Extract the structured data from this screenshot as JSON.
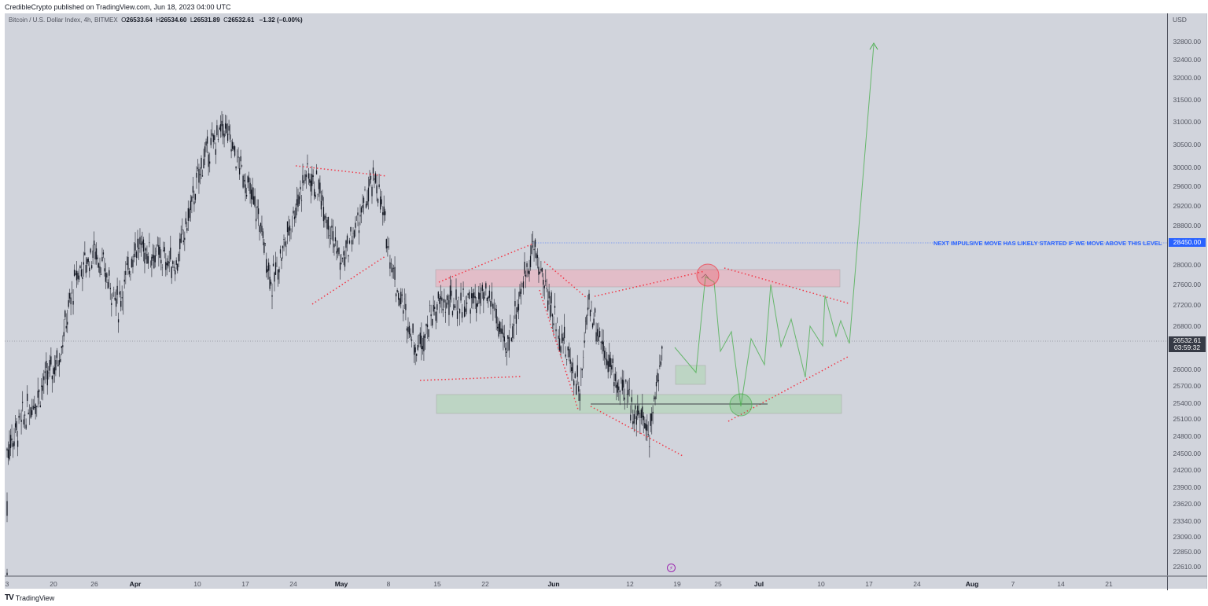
{
  "publish_bar": {
    "text": "CredibleCrypto published on TradingView.com, Jun 18, 2023 04:00 UTC"
  },
  "legend": {
    "symbol": "Bitcoin / U.S. Dollar Index, 4h, BITMEX",
    "open_label": "O",
    "open": "26533.64",
    "high_label": "H",
    "high": "26534.60",
    "low_label": "L",
    "low": "26531.89",
    "close_label": "C",
    "close": "26532.61",
    "change": "−1.32 (−0.00%)"
  },
  "price_axis": {
    "unit": "USD",
    "ticks": [
      "32800.00",
      "32400.00",
      "32000.00",
      "31500.00",
      "31000.00",
      "30500.00",
      "30000.00",
      "29600.00",
      "29200.00",
      "28800.00",
      "28000.00",
      "27600.00",
      "27200.00",
      "26800.00",
      "26000.00",
      "25700.00",
      "25400.00",
      "25100.00",
      "24800.00",
      "24500.00",
      "24200.00",
      "23900.00",
      "23620.00",
      "23340.00",
      "23090.00",
      "22850.00",
      "22610.00"
    ],
    "current_price": "26532.61",
    "countdown": "03:59:32",
    "level_label": "28450.00"
  },
  "time_axis": {
    "ticks": [
      {
        "label": "3",
        "month": false
      },
      {
        "label": "20",
        "month": false
      },
      {
        "label": "26",
        "month": false
      },
      {
        "label": "Apr",
        "month": true
      },
      {
        "label": "10",
        "month": false
      },
      {
        "label": "17",
        "month": false
      },
      {
        "label": "24",
        "month": false
      },
      {
        "label": "May",
        "month": true
      },
      {
        "label": "8",
        "month": false
      },
      {
        "label": "15",
        "month": false
      },
      {
        "label": "22",
        "month": false
      },
      {
        "label": "Jun",
        "month": true
      },
      {
        "label": "12",
        "month": false
      },
      {
        "label": "19",
        "month": false
      },
      {
        "label": "25",
        "month": false
      },
      {
        "label": "Jul",
        "month": true
      },
      {
        "label": "10",
        "month": false
      },
      {
        "label": "17",
        "month": false
      },
      {
        "label": "24",
        "month": false
      },
      {
        "label": "Aug",
        "month": true
      },
      {
        "label": "7",
        "month": false
      },
      {
        "label": "14",
        "month": false
      },
      {
        "label": "21",
        "month": false
      }
    ]
  },
  "annotations": {
    "level_text": "NEXT IMPULSIVE MOVE HAS LIKELY STARTED IF WE MOVE ABOVE THIS LEVEL",
    "event_icon": "lightning-icon"
  },
  "footer": {
    "logo": "TV",
    "brand": "TradingView"
  },
  "colors": {
    "background": "#d1d4dc",
    "candles": "#131722",
    "trendline": "#f23645",
    "projection": "#4caf50",
    "resistance_zone": "#f7a1b0",
    "support_zone": "#a5d6a7",
    "level_line": "#2962ff"
  },
  "chart_data": {
    "type": "candlestick",
    "title": "Bitcoin / U.S. Dollar Index, 4h, BITMEX",
    "xlabel": "",
    "ylabel": "USD",
    "ylim": [
      22400,
      33100
    ],
    "x_ticks": [
      "3",
      "20",
      "26",
      "Apr",
      "10",
      "17",
      "24",
      "May",
      "8",
      "15",
      "22",
      "Jun",
      "12",
      "19",
      "25",
      "Jul",
      "10",
      "17",
      "24",
      "Aug",
      "7",
      "14",
      "21"
    ],
    "y_ticks": [
      32800,
      32400,
      32000,
      31500,
      31000,
      30500,
      30000,
      29600,
      29200,
      28800,
      28000,
      27600,
      27200,
      26800,
      26000,
      25700,
      25400,
      25100,
      24800,
      24500,
      24200,
      23900,
      23620,
      23340,
      23090,
      22850,
      22610
    ],
    "grid": false,
    "ohlc_last": {
      "open": 26533.64,
      "high": 26534.6,
      "low": 26531.89,
      "close": 26532.61,
      "change": -1.32,
      "change_pct": -0.0
    },
    "price_path_approx": [
      {
        "date": "Mar 3",
        "price": 22500
      },
      {
        "date": "Mar 10",
        "price": 24600
      },
      {
        "date": "Mar 14",
        "price": 26200
      },
      {
        "date": "Mar 18",
        "price": 27800
      },
      {
        "date": "Mar 22",
        "price": 28300
      },
      {
        "date": "Mar 27",
        "price": 27200
      },
      {
        "date": "Apr 1",
        "price": 28400
      },
      {
        "date": "Apr 7",
        "price": 28000
      },
      {
        "date": "Apr 11",
        "price": 30200
      },
      {
        "date": "Apr 14",
        "price": 30900
      },
      {
        "date": "Apr 19",
        "price": 29000
      },
      {
        "date": "Apr 21",
        "price": 27600
      },
      {
        "date": "Apr 26",
        "price": 29900
      },
      {
        "date": "Apr 28",
        "price": 29500
      },
      {
        "date": "May 1",
        "price": 28000
      },
      {
        "date": "May 6",
        "price": 29800
      },
      {
        "date": "May 9",
        "price": 27600
      },
      {
        "date": "May 12",
        "price": 26400
      },
      {
        "date": "May 15",
        "price": 27200
      },
      {
        "date": "May 23",
        "price": 27300
      },
      {
        "date": "May 25",
        "price": 26300
      },
      {
        "date": "May 29",
        "price": 28400
      },
      {
        "date": "Jun 1",
        "price": 27000
      },
      {
        "date": "Jun 5",
        "price": 25600
      },
      {
        "date": "Jun 6",
        "price": 27300
      },
      {
        "date": "Jun 10",
        "price": 25800
      },
      {
        "date": "Jun 15",
        "price": 24900
      },
      {
        "date": "Jun 17",
        "price": 26530
      }
    ],
    "current_price": 26532.61,
    "horizontal_level": {
      "price": 28450,
      "label": "NEXT IMPULSIVE MOVE HAS LIKELY STARTED IF WE MOVE ABOVE THIS LEVEL"
    },
    "zones": [
      {
        "type": "resistance",
        "from": "May 15",
        "to": "Jul 12",
        "low": 27600,
        "high": 27900
      },
      {
        "type": "support",
        "from": "May 15",
        "to": "Jul 12",
        "low": 25200,
        "high": 25500
      },
      {
        "type": "support_small",
        "from": "Jun 19",
        "to": "Jun 23",
        "low": 25750,
        "high": 26050
      }
    ],
    "projection_path": [
      {
        "date": "Jun 19",
        "price": 26350
      },
      {
        "date": "Jun 22",
        "price": 25950
      },
      {
        "date": "Jun 24",
        "price": 27850
      },
      {
        "date": "Jun 25",
        "price": 27700
      },
      {
        "date": "Jun 26",
        "price": 26300
      },
      {
        "date": "Jun 28",
        "price": 26650
      },
      {
        "date": "Jun 30",
        "price": 25300
      },
      {
        "date": "Jul 1",
        "price": 26500
      },
      {
        "date": "Jul 3",
        "price": 26100
      },
      {
        "date": "Jul 5",
        "price": 27500
      },
      {
        "date": "Jul 6",
        "price": 26700
      },
      {
        "date": "Jul 8",
        "price": 26950
      },
      {
        "date": "Jul 10",
        "price": 26000
      },
      {
        "date": "Jul 11",
        "price": 26900
      },
      {
        "date": "Jul 12",
        "price": 26550
      },
      {
        "date": "Jul 13",
        "price": 27300
      },
      {
        "date": "Jul 14",
        "price": 26750
      },
      {
        "date": "Jul 14b",
        "price": 26950
      },
      {
        "date": "Jul 15",
        "price": 26600
      },
      {
        "date": "Jul 18",
        "price": 32900
      }
    ]
  }
}
